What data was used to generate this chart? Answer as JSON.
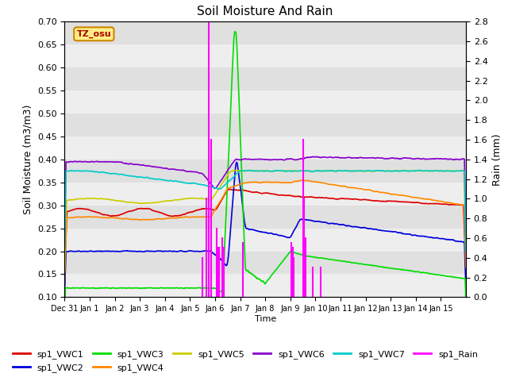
{
  "title": "Soil Moisture And Rain",
  "xlabel": "Time",
  "ylabel_left": "Soil Moisture (m3/m3)",
  "ylabel_right": "Rain (mm)",
  "station_label": "TZ_osu",
  "xlim_days": [
    0,
    16
  ],
  "ylim_left": [
    0.1,
    0.7
  ],
  "ylim_right": [
    0.0,
    2.8
  ],
  "bg_color": "#e0e0e0",
  "fig_color": "#ffffff",
  "series": {
    "VWC1": {
      "color": "#dd0000",
      "label": "sp1_VWC1"
    },
    "VWC2": {
      "color": "#0000dd",
      "label": "sp1_VWC2"
    },
    "VWC3": {
      "color": "#00dd00",
      "label": "sp1_VWC3"
    },
    "VWC4": {
      "color": "#ff8800",
      "label": "sp1_VWC4"
    },
    "VWC5": {
      "color": "#cccc00",
      "label": "sp1_VWC5"
    },
    "VWC6": {
      "color": "#8800cc",
      "label": "sp1_VWC6"
    },
    "VWC7": {
      "color": "#00cccc",
      "label": "sp1_VWC7"
    },
    "Rain": {
      "color": "#ff00ff",
      "label": "sp1_Rain"
    }
  },
  "yticks_left": [
    0.1,
    0.15,
    0.2,
    0.25,
    0.3,
    0.35,
    0.4,
    0.45,
    0.5,
    0.55,
    0.6,
    0.65,
    0.7
  ],
  "yticks_right": [
    0.0,
    0.2,
    0.4,
    0.6,
    0.8,
    1.0,
    1.2,
    1.4,
    1.6,
    1.8,
    2.0,
    2.2,
    2.4,
    2.6,
    2.8
  ]
}
